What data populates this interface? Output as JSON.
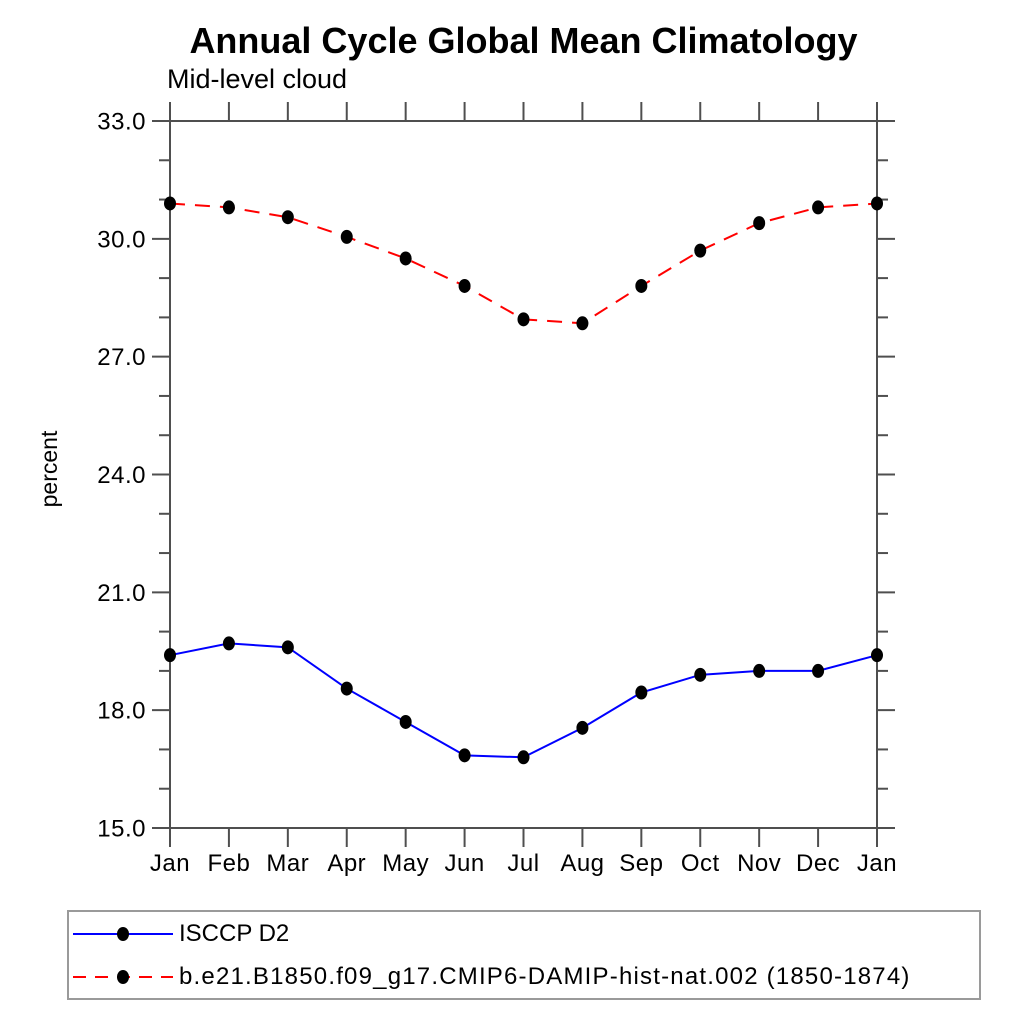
{
  "title": "Annual Cycle Global Mean Climatology",
  "chart_data": {
    "type": "line",
    "subtitle": "Mid-level cloud",
    "ylabel": "percent",
    "xlabel": "",
    "categories": [
      "Jan",
      "Feb",
      "Mar",
      "Apr",
      "May",
      "Jun",
      "Jul",
      "Aug",
      "Sep",
      "Oct",
      "Nov",
      "Dec",
      "Jan"
    ],
    "series": [
      {
        "name": "ISCCP D2",
        "color": "#0000ff",
        "style": "solid",
        "values": [
          19.4,
          19.7,
          19.6,
          18.55,
          17.7,
          16.85,
          16.8,
          17.55,
          18.45,
          18.9,
          19.0,
          19.0,
          19.4
        ]
      },
      {
        "name": "b.e21.B1850.f09_g17.CMIP6-DAMIP-hist-nat.002 (1850-1874)",
        "color": "#ff0000",
        "style": "dashed",
        "values": [
          30.9,
          30.8,
          30.55,
          30.05,
          29.5,
          28.8,
          27.95,
          27.85,
          28.8,
          29.7,
          30.4,
          30.8,
          30.9
        ]
      }
    ],
    "ylim": [
      15.0,
      33.0
    ],
    "yticks_major": [
      15,
      18,
      21,
      24,
      27,
      30,
      33
    ],
    "ytick_labels": [
      "15.0",
      "18.0",
      "21.0",
      "24.0",
      "27.0",
      "30.0",
      "33.0"
    ],
    "y_minor_step": 1,
    "grid": "off",
    "legend_position": "bottom-left",
    "marker": "filled-circle",
    "marker_color": "#000000",
    "axis_color": "#4f4f4f",
    "text_color": "#000000"
  }
}
